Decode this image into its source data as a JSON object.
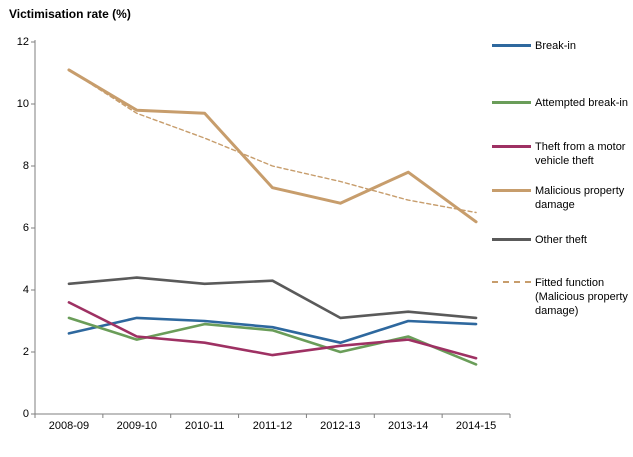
{
  "chart_data": {
    "type": "line",
    "title": "Victimisation rate (%)",
    "categories": [
      "2008-09",
      "2009-10",
      "2010-11",
      "2011-12",
      "2012-13",
      "2013-14",
      "2014-15"
    ],
    "series": [
      {
        "name": "Break-in",
        "color": "#2e689e",
        "style": "solid",
        "values": [
          2.6,
          3.1,
          3.0,
          2.8,
          2.3,
          3.0,
          2.9
        ]
      },
      {
        "name": "Attempted break-in",
        "color": "#6a9d59",
        "style": "solid",
        "values": [
          3.1,
          2.4,
          2.9,
          2.7,
          2.0,
          2.5,
          1.6
        ]
      },
      {
        "name": "Theft from a motor vehicle theft",
        "color": "#9e3163",
        "style": "solid",
        "values": [
          3.6,
          2.5,
          2.3,
          1.9,
          2.2,
          2.4,
          1.8
        ]
      },
      {
        "name": "Malicious property damage",
        "color": "#c79d6c",
        "style": "solid",
        "values": [
          11.1,
          9.8,
          9.7,
          7.3,
          6.8,
          7.8,
          6.2
        ]
      },
      {
        "name": "Other theft",
        "color": "#5a5a5a",
        "style": "solid",
        "values": [
          4.2,
          4.4,
          4.2,
          4.3,
          3.1,
          3.3,
          3.1
        ]
      },
      {
        "name": "Fitted function (Malicious property damage)",
        "color": "#c79d6c",
        "style": "dashed",
        "values": [
          11.1,
          9.7,
          8.9,
          8.0,
          7.5,
          6.9,
          6.5
        ]
      }
    ],
    "ylabel": "",
    "xlabel": "",
    "ylim": [
      0,
      12
    ],
    "y_ticks": [
      0,
      2,
      4,
      6,
      8,
      10,
      12
    ],
    "grid": false,
    "legend_position": "right",
    "axis_color": "#7f7f7f"
  }
}
